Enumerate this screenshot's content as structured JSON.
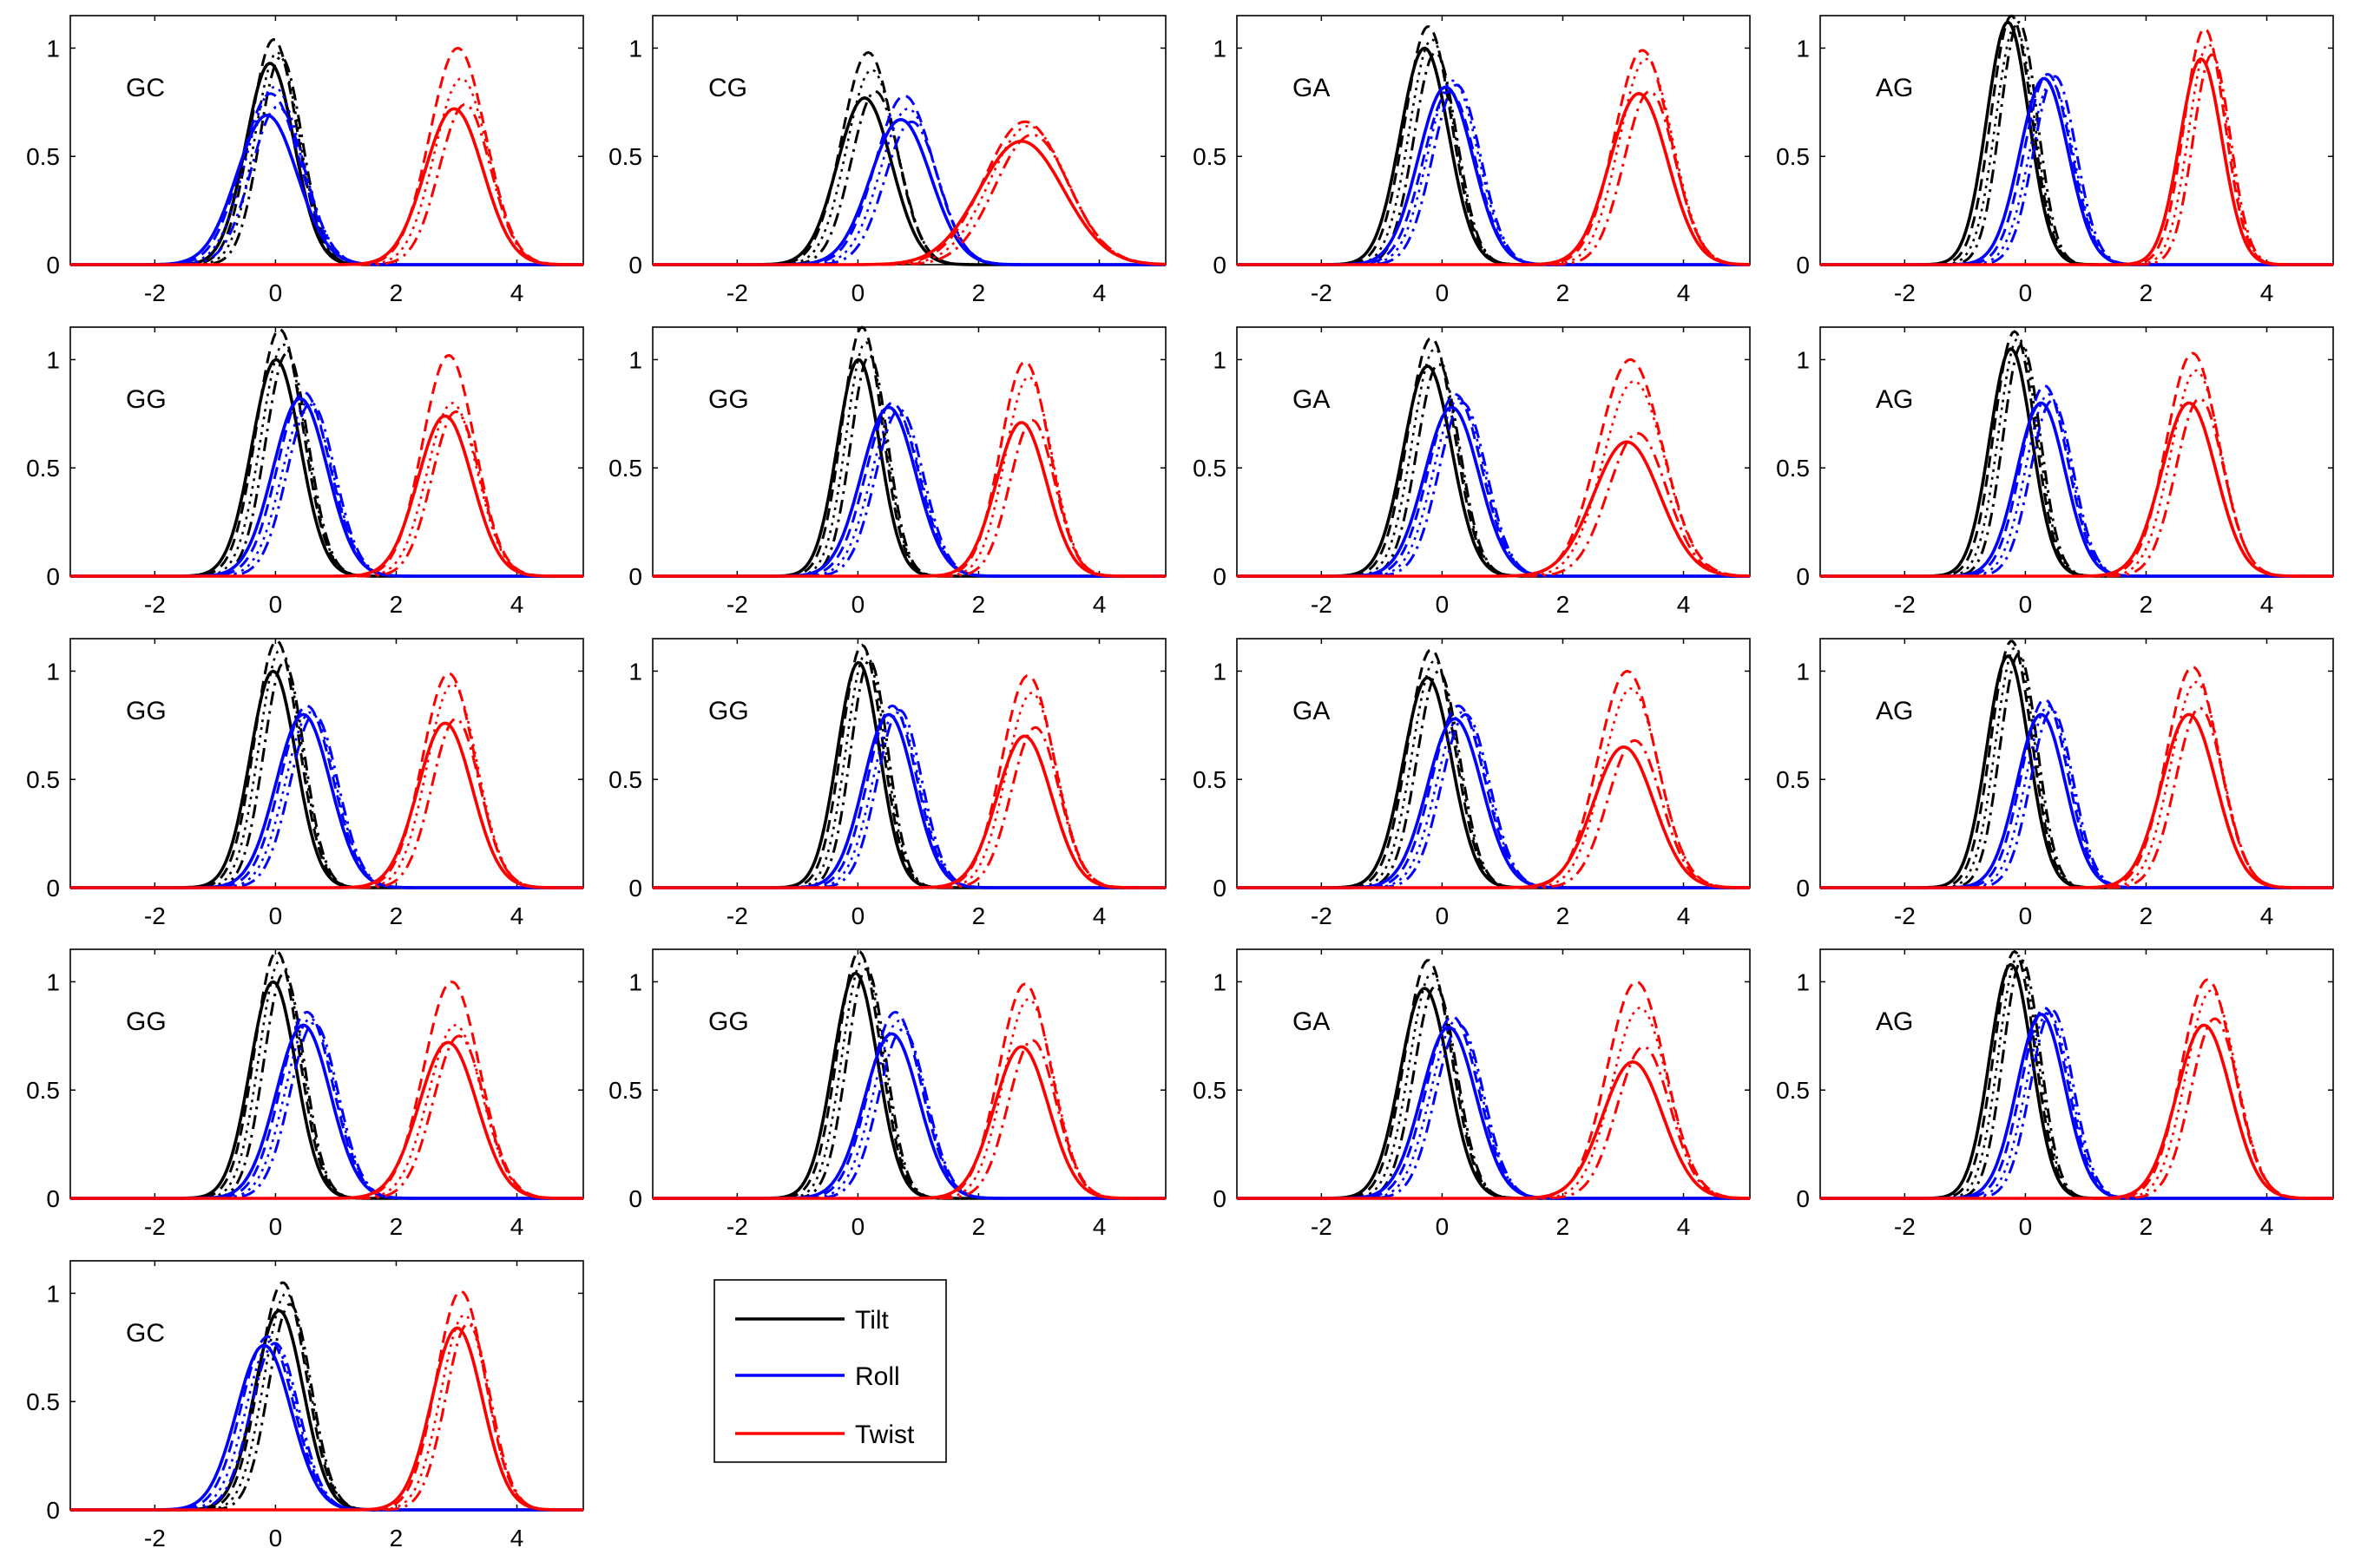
{
  "figure": {
    "legend": [
      {
        "label": "Tilt",
        "color": "#000000"
      },
      {
        "label": "Roll",
        "color": "#0000ff"
      },
      {
        "label": "Twist",
        "color": "#ff0000"
      }
    ]
  },
  "colors": {
    "tilt": "#000000",
    "roll": "#0000ff",
    "twist": "#ff0000"
  },
  "chart_data": [
    {
      "type": "line",
      "panel": "GC",
      "xlim": [
        -3.4,
        5.1
      ],
      "ylim": [
        0,
        1.15
      ],
      "xticks": [
        -2,
        0,
        2,
        4
      ],
      "yticks": [
        0,
        0.5,
        1
      ],
      "tilt": {
        "mu": 0,
        "sigma": 0.4,
        "amps": [
          0.93,
          1.04,
          0.98,
          0.96
        ]
      },
      "roll": {
        "mu": -0.05,
        "sigma": 0.5,
        "amps": [
          0.69,
          0.79,
          0.82,
          0.73
        ]
      },
      "twist": {
        "mu": 3.05,
        "sigma": 0.48,
        "amps": [
          0.72,
          1.0,
          0.86,
          0.74
        ]
      }
    },
    {
      "type": "line",
      "panel": "CG",
      "xlim": [
        -3.4,
        5.1
      ],
      "ylim": [
        0,
        1.15
      ],
      "xticks": [
        -2,
        0,
        2,
        4
      ],
      "yticks": [
        0,
        0.5,
        1
      ],
      "tilt": {
        "mu": 0.2,
        "sigma": 0.45,
        "amps": [
          0.77,
          0.98,
          0.9,
          0.8
        ]
      },
      "roll": {
        "mu": 0.8,
        "sigma": 0.5,
        "amps": [
          0.67,
          0.78,
          0.72,
          0.66
        ]
      },
      "twist": {
        "mu": 2.8,
        "sigma": 0.7,
        "amps": [
          0.57,
          0.66,
          0.64,
          0.6
        ]
      }
    },
    {
      "type": "line",
      "panel": "GA",
      "xlim": [
        -3.4,
        5.1
      ],
      "ylim": [
        0,
        1.15
      ],
      "xticks": [
        -2,
        0,
        2,
        4
      ],
      "yticks": [
        0,
        0.5,
        1
      ],
      "tilt": {
        "mu": -0.2,
        "sigma": 0.4,
        "amps": [
          1.0,
          1.1,
          1.04,
          0.98
        ]
      },
      "roll": {
        "mu": 0.15,
        "sigma": 0.45,
        "amps": [
          0.82,
          0.8,
          0.85,
          0.83
        ]
      },
      "twist": {
        "mu": 3.35,
        "sigma": 0.48,
        "amps": [
          0.79,
          0.99,
          0.95,
          0.8
        ]
      }
    },
    {
      "type": "line",
      "panel": "AG",
      "xlim": [
        -3.4,
        5.1
      ],
      "ylim": [
        0,
        1.15
      ],
      "xticks": [
        -2,
        0,
        2,
        4
      ],
      "yticks": [
        0,
        0.5,
        1
      ],
      "tilt": {
        "mu": -0.2,
        "sigma": 0.35,
        "amps": [
          1.12,
          1.15,
          1.1,
          1.12
        ]
      },
      "roll": {
        "mu": 0.4,
        "sigma": 0.4,
        "amps": [
          0.86,
          0.88,
          0.84,
          0.87
        ]
      },
      "twist": {
        "mu": 3.0,
        "sigma": 0.35,
        "amps": [
          0.95,
          1.09,
          1.02,
          0.97
        ]
      }
    },
    {
      "type": "line",
      "panel": "GG",
      "xlim": [
        -3.4,
        5.1
      ],
      "ylim": [
        0,
        1.15
      ],
      "xticks": [
        -2,
        0,
        2,
        4
      ],
      "yticks": [
        0,
        0.5,
        1
      ],
      "tilt": {
        "mu": 0.1,
        "sigma": 0.4,
        "amps": [
          1.0,
          1.14,
          1.07,
          1.03
        ]
      },
      "roll": {
        "mu": 0.5,
        "sigma": 0.45,
        "amps": [
          0.82,
          0.85,
          0.8,
          0.8
        ]
      },
      "twist": {
        "mu": 2.9,
        "sigma": 0.45,
        "amps": [
          0.74,
          1.02,
          0.8,
          0.76
        ]
      }
    },
    {
      "type": "line",
      "panel": "GG",
      "xlim": [
        -3.4,
        5.1
      ],
      "ylim": [
        0,
        1.15
      ],
      "xticks": [
        -2,
        0,
        2,
        4
      ],
      "yticks": [
        0,
        0.5,
        1
      ],
      "tilt": {
        "mu": 0.1,
        "sigma": 0.35,
        "amps": [
          1.0,
          1.15,
          1.08,
          1.02
        ]
      },
      "roll": {
        "mu": 0.6,
        "sigma": 0.45,
        "amps": [
          0.78,
          0.8,
          0.76,
          0.77
        ]
      },
      "twist": {
        "mu": 2.8,
        "sigma": 0.42,
        "amps": [
          0.71,
          0.99,
          0.92,
          0.72
        ]
      }
    },
    {
      "type": "line",
      "panel": "GA",
      "xlim": [
        -3.4,
        5.1
      ],
      "ylim": [
        0,
        1.15
      ],
      "xticks": [
        -2,
        0,
        2,
        4
      ],
      "yticks": [
        0,
        0.5,
        1
      ],
      "tilt": {
        "mu": -0.15,
        "sigma": 0.4,
        "amps": [
          0.97,
          1.1,
          1.05,
          0.98
        ]
      },
      "roll": {
        "mu": 0.25,
        "sigma": 0.45,
        "amps": [
          0.78,
          0.84,
          0.82,
          0.8
        ]
      },
      "twist": {
        "mu": 3.15,
        "sigma": 0.55,
        "amps": [
          0.62,
          1.0,
          0.9,
          0.66
        ]
      }
    },
    {
      "type": "line",
      "panel": "AG",
      "xlim": [
        -3.4,
        5.1
      ],
      "ylim": [
        0,
        1.15
      ],
      "xticks": [
        -2,
        0,
        2,
        4
      ],
      "yticks": [
        0,
        0.5,
        1
      ],
      "tilt": {
        "mu": -0.15,
        "sigma": 0.35,
        "amps": [
          1.05,
          1.13,
          1.1,
          1.07
        ]
      },
      "roll": {
        "mu": 0.35,
        "sigma": 0.4,
        "amps": [
          0.8,
          0.88,
          0.84,
          0.81
        ]
      },
      "twist": {
        "mu": 2.8,
        "sigma": 0.45,
        "amps": [
          0.8,
          1.03,
          0.95,
          0.82
        ]
      }
    },
    {
      "type": "line",
      "panel": "GG",
      "xlim": [
        -3.4,
        5.1
      ],
      "ylim": [
        0,
        1.15
      ],
      "xticks": [
        -2,
        0,
        2,
        4
      ],
      "yticks": [
        0,
        0.5,
        1
      ],
      "tilt": {
        "mu": 0.05,
        "sigma": 0.38,
        "amps": [
          1.0,
          1.14,
          1.1,
          1.04
        ]
      },
      "roll": {
        "mu": 0.55,
        "sigma": 0.45,
        "amps": [
          0.8,
          0.84,
          0.81,
          0.8
        ]
      },
      "twist": {
        "mu": 2.9,
        "sigma": 0.45,
        "amps": [
          0.76,
          0.99,
          0.94,
          0.78
        ]
      }
    },
    {
      "type": "line",
      "panel": "GG",
      "xlim": [
        -3.4,
        5.1
      ],
      "ylim": [
        0,
        1.15
      ],
      "xticks": [
        -2,
        0,
        2,
        4
      ],
      "yticks": [
        0,
        0.5,
        1
      ],
      "tilt": {
        "mu": 0.1,
        "sigma": 0.35,
        "amps": [
          1.04,
          1.12,
          1.08,
          1.05
        ]
      },
      "roll": {
        "mu": 0.6,
        "sigma": 0.42,
        "amps": [
          0.8,
          0.84,
          0.81,
          0.82
        ]
      },
      "twist": {
        "mu": 2.85,
        "sigma": 0.45,
        "amps": [
          0.7,
          0.98,
          0.9,
          0.74
        ]
      }
    },
    {
      "type": "line",
      "panel": "GA",
      "xlim": [
        -3.4,
        5.1
      ],
      "ylim": [
        0,
        1.15
      ],
      "xticks": [
        -2,
        0,
        2,
        4
      ],
      "yticks": [
        0,
        0.5,
        1
      ],
      "tilt": {
        "mu": -0.15,
        "sigma": 0.4,
        "amps": [
          0.97,
          1.1,
          1.05,
          1.0
        ]
      },
      "roll": {
        "mu": 0.3,
        "sigma": 0.45,
        "amps": [
          0.78,
          0.84,
          0.81,
          0.8
        ]
      },
      "twist": {
        "mu": 3.1,
        "sigma": 0.5,
        "amps": [
          0.65,
          1.0,
          0.92,
          0.68
        ]
      }
    },
    {
      "type": "line",
      "panel": "AG",
      "xlim": [
        -3.4,
        5.1
      ],
      "ylim": [
        0,
        1.15
      ],
      "xticks": [
        -2,
        0,
        2,
        4
      ],
      "yticks": [
        0,
        0.5,
        1
      ],
      "tilt": {
        "mu": -0.2,
        "sigma": 0.35,
        "amps": [
          1.07,
          1.14,
          1.11,
          1.08
        ]
      },
      "roll": {
        "mu": 0.35,
        "sigma": 0.4,
        "amps": [
          0.8,
          0.87,
          0.84,
          0.82
        ]
      },
      "twist": {
        "mu": 2.8,
        "sigma": 0.45,
        "amps": [
          0.8,
          1.02,
          0.95,
          0.83
        ]
      }
    },
    {
      "type": "line",
      "panel": "GG",
      "xlim": [
        -3.4,
        5.1
      ],
      "ylim": [
        0,
        1.15
      ],
      "xticks": [
        -2,
        0,
        2,
        4
      ],
      "yticks": [
        0,
        0.5,
        1
      ],
      "tilt": {
        "mu": 0.05,
        "sigma": 0.38,
        "amps": [
          1.0,
          1.14,
          1.1,
          1.04
        ]
      },
      "roll": {
        "mu": 0.55,
        "sigma": 0.45,
        "amps": [
          0.8,
          0.86,
          0.83,
          0.81
        ]
      },
      "twist": {
        "mu": 2.95,
        "sigma": 0.48,
        "amps": [
          0.72,
          1.0,
          0.8,
          0.75
        ]
      }
    },
    {
      "type": "line",
      "panel": "GG",
      "xlim": [
        -3.4,
        5.1
      ],
      "ylim": [
        0,
        1.15
      ],
      "xticks": [
        -2,
        0,
        2,
        4
      ],
      "yticks": [
        0,
        0.5,
        1
      ],
      "tilt": {
        "mu": 0.05,
        "sigma": 0.37,
        "amps": [
          1.04,
          1.14,
          1.1,
          1.06
        ]
      },
      "roll": {
        "mu": 0.65,
        "sigma": 0.45,
        "amps": [
          0.76,
          0.86,
          0.82,
          0.78
        ]
      },
      "twist": {
        "mu": 2.8,
        "sigma": 0.45,
        "amps": [
          0.7,
          0.99,
          0.92,
          0.73
        ]
      }
    },
    {
      "type": "line",
      "panel": "GA",
      "xlim": [
        -3.4,
        5.1
      ],
      "ylim": [
        0,
        1.15
      ],
      "xticks": [
        -2,
        0,
        2,
        4
      ],
      "yticks": [
        0,
        0.5,
        1
      ],
      "tilt": {
        "mu": -0.2,
        "sigma": 0.4,
        "amps": [
          0.97,
          1.1,
          1.04,
          0.98
        ]
      },
      "roll": {
        "mu": 0.2,
        "sigma": 0.45,
        "amps": [
          0.79,
          0.84,
          0.82,
          0.8
        ]
      },
      "twist": {
        "mu": 3.25,
        "sigma": 0.5,
        "amps": [
          0.63,
          1.0,
          0.88,
          0.7
        ]
      }
    },
    {
      "type": "line",
      "panel": "AG",
      "xlim": [
        -3.4,
        5.1
      ],
      "ylim": [
        0,
        1.15
      ],
      "xticks": [
        -2,
        0,
        2,
        4
      ],
      "yticks": [
        0,
        0.5,
        1
      ],
      "tilt": {
        "mu": -0.15,
        "sigma": 0.35,
        "amps": [
          1.08,
          1.14,
          1.12,
          1.1
        ]
      },
      "roll": {
        "mu": 0.35,
        "sigma": 0.4,
        "amps": [
          0.85,
          0.88,
          0.86,
          0.87
        ]
      },
      "twist": {
        "mu": 3.05,
        "sigma": 0.45,
        "amps": [
          0.8,
          1.01,
          0.96,
          0.83
        ]
      }
    },
    {
      "type": "line",
      "panel": "GC",
      "xlim": [
        -3.4,
        5.1
      ],
      "ylim": [
        0,
        1.15
      ],
      "xticks": [
        -2,
        0,
        2,
        4
      ],
      "yticks": [
        0,
        0.5,
        1
      ],
      "tilt": {
        "mu": 0.15,
        "sigma": 0.4,
        "amps": [
          0.92,
          1.05,
          1.0,
          0.95
        ]
      },
      "roll": {
        "mu": -0.1,
        "sigma": 0.45,
        "amps": [
          0.76,
          0.8,
          0.78,
          0.77
        ]
      },
      "twist": {
        "mu": 3.1,
        "sigma": 0.42,
        "amps": [
          0.84,
          1.01,
          0.9,
          0.86
        ]
      }
    }
  ]
}
